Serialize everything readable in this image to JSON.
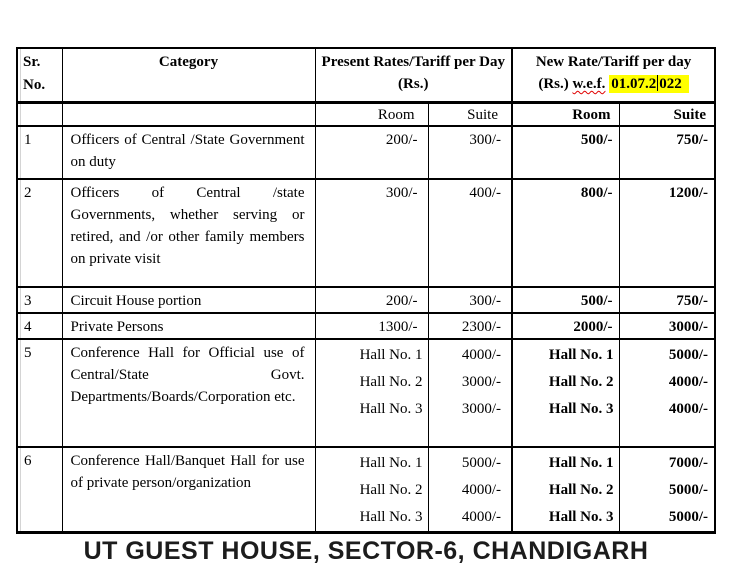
{
  "page": {
    "background": "#ffffff",
    "highlight_color": "#ffff00"
  },
  "table": {
    "header": {
      "sr_no": "Sr.\nNo.",
      "category": "Category",
      "present_rates": "Present Rates/Tariff per Day (Rs.)",
      "new_rates_prefix": "New Rate/Tariff per day (Rs.)",
      "wef": "w.e.f.",
      "effective_date": "01.07.2022",
      "date_before_caret": "01.07.2",
      "date_after_caret": "022",
      "room": "Room",
      "suite": "Suite"
    },
    "rows": [
      {
        "sr": "1",
        "category": "Officers of Central /State Government on duty",
        "present": {
          "room": "200/-",
          "suite": "300/-"
        },
        "new": {
          "room": "500/-",
          "suite": "750/-"
        }
      },
      {
        "sr": "2",
        "category": "Officers of Central /state Governments, whether serving or retired, and /or other family members on private visit",
        "present": {
          "room": "300/-",
          "suite": "400/-"
        },
        "new": {
          "room": "800/-",
          "suite": "1200/-"
        }
      },
      {
        "sr": "3",
        "category": "Circuit House portion",
        "present": {
          "room": "200/-",
          "suite": "300/-"
        },
        "new": {
          "room": "500/-",
          "suite": "750/-"
        }
      },
      {
        "sr": "4",
        "category": "Private Persons",
        "present": {
          "room": "1300/-",
          "suite": "2300/-"
        },
        "new": {
          "room": "2000/-",
          "suite": "3000/-"
        }
      },
      {
        "sr": "5",
        "category": "Conference Hall for Official use of Central/State Govt. Departments/Boards/Corporation etc.",
        "present_halls": [
          {
            "label": "Hall No. 1",
            "price": "4000/-"
          },
          {
            "label": "Hall No. 2",
            "price": "3000/-"
          },
          {
            "label": "Hall No. 3",
            "price": "3000/-"
          }
        ],
        "new_halls": [
          {
            "label": "Hall No. 1",
            "price": "5000/-"
          },
          {
            "label": "Hall No. 2",
            "price": "4000/-"
          },
          {
            "label": "Hall No. 3",
            "price": "4000/-"
          }
        ]
      },
      {
        "sr": "6",
        "category": "Conference Hall/Banquet Hall for use of private person/organization",
        "present_halls": [
          {
            "label": "Hall No. 1",
            "price": "5000/-"
          },
          {
            "label": "Hall No. 2",
            "price": "4000/-"
          },
          {
            "label": "Hall No. 3",
            "price": "4000/-"
          }
        ],
        "new_halls": [
          {
            "label": "Hall No. 1",
            "price": "7000/-"
          },
          {
            "label": "Hall No. 2",
            "price": "5000/-"
          },
          {
            "label": "Hall No. 3",
            "price": "5000/-"
          }
        ]
      }
    ]
  },
  "footer": {
    "text": "UT GUEST HOUSE, SECTOR-6, CHANDIGARH"
  }
}
